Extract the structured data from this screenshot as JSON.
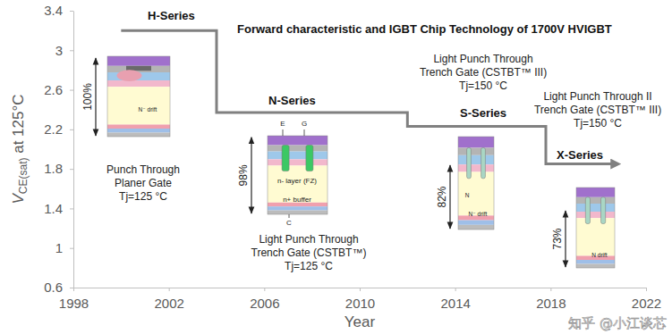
{
  "chart_data": {
    "type": "line",
    "title": "Forward characteristic and IGBT Chip Technology of 1700V HVIGBT",
    "xlabel": "Year",
    "ylabel": [
      "V",
      "CE(sat)",
      " at 125°C"
    ],
    "x": [
      2000,
      2004,
      2012,
      2017.8,
      2020.6
    ],
    "values": [
      3.2,
      2.37,
      2.23,
      1.85,
      1.85
    ],
    "color": "#808080",
    "line_style": "step",
    "xlim": [
      1998,
      2022
    ],
    "xticks": [
      1998,
      2002,
      2006,
      2010,
      2014,
      2018,
      2022
    ],
    "ylim": [
      0.6,
      3.4
    ],
    "yticks": [
      0.6,
      1,
      1.4,
      1.8,
      2.2,
      2.6,
      3,
      3.4
    ],
    "grid": false,
    "chips": [
      {
        "name": "H-Series",
        "percent": 100,
        "percent_label": "100%",
        "description": [
          "Punch Through",
          "Planer Gate",
          "Tj=125 °C"
        ],
        "labels": [
          "N⁻ drift"
        ]
      },
      {
        "name": "N-Series",
        "percent": 98,
        "percent_label": "98%",
        "description": [
          "Light Punch Through",
          "Trench Gate (CSTBT™)",
          "Tj=125 °C"
        ],
        "labels": [
          "E",
          "G",
          "n- layer (FZ)",
          "n+ buffer",
          "C"
        ]
      },
      {
        "name": "S-Series",
        "percent": 82,
        "percent_label": "82%",
        "description": [
          "Light Punch Through",
          "Trench Gate (CSTBT™ III)",
          "Tj=150 °C"
        ],
        "labels": [
          "N",
          "N⁻ drift"
        ]
      },
      {
        "name": "X-Series",
        "percent": 73,
        "percent_label": "73%",
        "description": [
          "Light Punch Through II",
          "Trench Gate (CSTBT™ III)",
          "Tj=150 °C"
        ],
        "labels": [
          "N drift"
        ]
      }
    ],
    "watermark": "知乎 @小江谈芯"
  }
}
